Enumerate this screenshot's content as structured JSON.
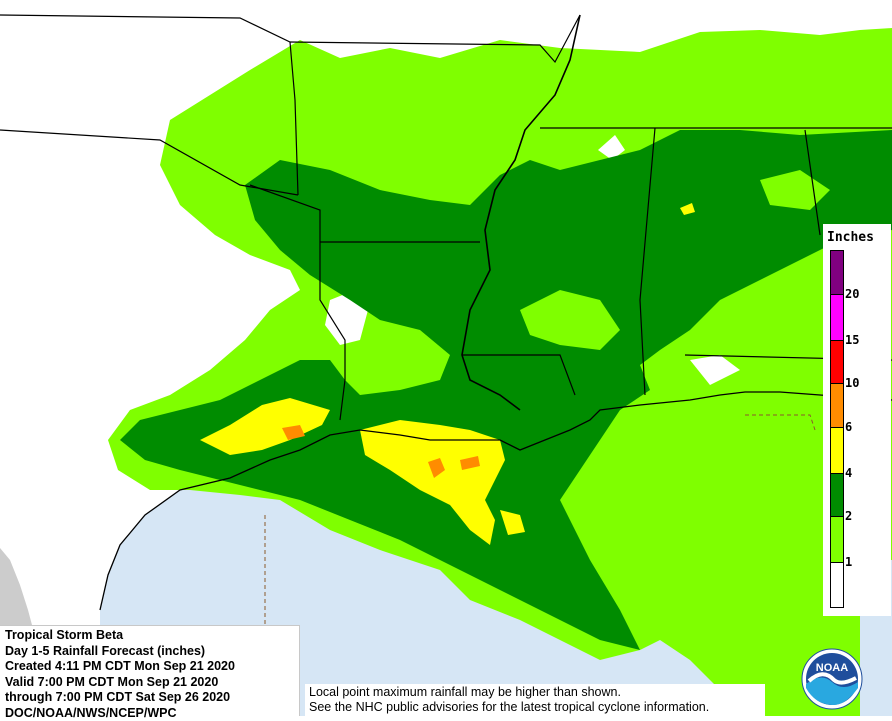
{
  "info_box": {
    "line1": "Tropical Storm Beta",
    "line2": "Day 1-5 Rainfall Forecast (inches)",
    "line3": "Created 4:11 PM CDT Mon Sep 21 2020",
    "line4": "Valid 7:00 PM CDT Mon Sep 21 2020",
    "line5": "through 7:00 PM CDT Sat Sep 26 2020",
    "line6": "DOC/NOAA/NWS/NCEP/WPC"
  },
  "disclaimer": {
    "line1": "Local point maximum rainfall may be higher than shown.",
    "line2": "See the NHC public advisories for the latest tropical cyclone information."
  },
  "legend": {
    "title": "Inches",
    "bins": [
      {
        "label": "1",
        "color": "#ffffff"
      },
      {
        "label": "2",
        "color": "#7fff00"
      },
      {
        "label": "4",
        "color": "#008c00"
      },
      {
        "label": "6",
        "color": "#ffff00"
      },
      {
        "label": "10",
        "color": "#ff8c00"
      },
      {
        "label": "15",
        "color": "#ff0000"
      },
      {
        "label": "20",
        "color": "#ff00ff"
      },
      {
        "label": "",
        "color": "#800080"
      }
    ]
  },
  "logo": {
    "text": "NOAA"
  },
  "colors": {
    "water": "#d6e6f5",
    "land": "#ffffff",
    "mexico_land": "#cccccc",
    "light_green": "#7fff00",
    "dark_green": "#008c00",
    "yellow": "#ffff00",
    "orange": "#ff8c00"
  }
}
